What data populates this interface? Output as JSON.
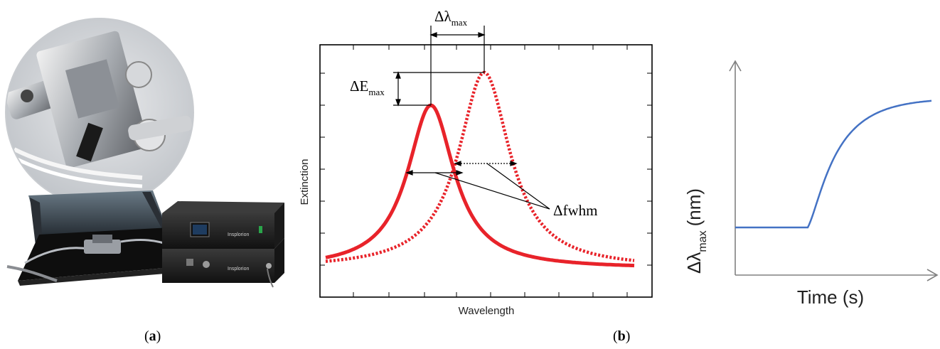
{
  "figure": {
    "panel_a": {
      "open": "(",
      "letter": "a",
      "close": ")"
    },
    "panel_b": {
      "open": "(",
      "letter": "b",
      "close": ")"
    }
  },
  "photo": {
    "device_brand_upper": "Insplorion",
    "device_brand_lower": "Insplorion"
  },
  "spectrum": {
    "xlabel": "Wavelength",
    "ylabel": "Extinction",
    "delta_lambda_symbol": "Δλ",
    "delta_lambda_sub": "max",
    "delta_e_symbol": "ΔE",
    "delta_e_sub": "max",
    "fwhm_label": "Δfwhm",
    "colors": {
      "curve": "#e8232a",
      "frame": "#000000"
    }
  },
  "sensorgram": {
    "xlabel": "Time (s)",
    "ylabel_symbol": "Δλ",
    "ylabel_sub": "max",
    "ylabel_unit": "(nm)",
    "colors": {
      "curve": "#4472c4",
      "axis": "#808080"
    }
  },
  "chart_data": [
    {
      "type": "line",
      "xlabel": "Wavelength",
      "ylabel": "Extinction",
      "series": [
        {
          "style": "solid",
          "peak_x": 0.34,
          "peak_y": 0.73
        },
        {
          "style": "dotted",
          "peak_x": 0.52,
          "peak_y": 0.88
        }
      ],
      "annotations": [
        "Δλmax",
        "ΔEmax",
        "Δfwhm"
      ],
      "grid": false
    },
    {
      "type": "line",
      "xlabel": "Time (s)",
      "ylabel": "Δλmax (nm)",
      "series": [
        {
          "baseline": 0.25,
          "step_at": 0.35,
          "plateau": 0.8
        }
      ],
      "grid": false
    }
  ]
}
